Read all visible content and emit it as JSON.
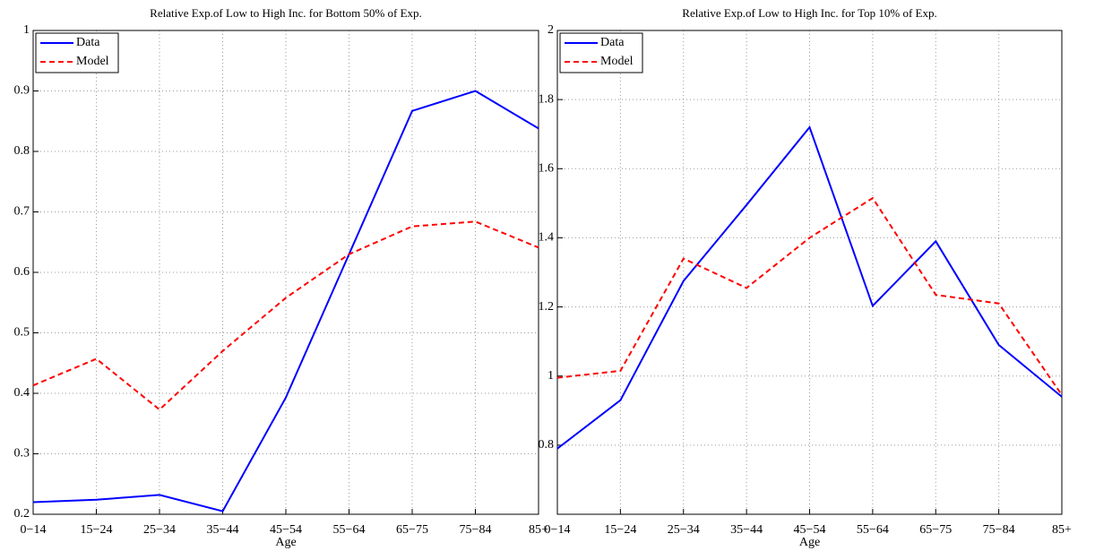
{
  "chart_data": [
    {
      "type": "line",
      "title": "Relative Exp.of Low to High Inc. for Bottom 50% of Exp.",
      "x_label": "Age",
      "categories": [
        "0−14",
        "15−24",
        "25−34",
        "35−44",
        "45−54",
        "55−64",
        "65−75",
        "75−84",
        "85+"
      ],
      "series": [
        {
          "name": "Data",
          "color": "#0000ff",
          "style": "solid",
          "values": [
            0.22,
            0.224,
            0.232,
            0.205,
            0.393,
            0.63,
            0.867,
            0.9,
            0.838
          ]
        },
        {
          "name": "Model",
          "color": "#ff0000",
          "style": "dashed",
          "values": [
            0.413,
            0.457,
            0.373,
            0.47,
            0.558,
            0.63,
            0.676,
            0.684,
            0.641
          ]
        }
      ],
      "ylim": [
        0.2,
        1
      ],
      "yticks": [
        0.2,
        0.3,
        0.4,
        0.5,
        0.6,
        0.7,
        0.8,
        0.9,
        1
      ],
      "grid": true,
      "legend": "top-left"
    },
    {
      "type": "line",
      "title": "Relative Exp.of Low to High Inc. for Top 10% of Exp.",
      "x_label": "Age",
      "categories": [
        "0−14",
        "15−24",
        "25−34",
        "35−44",
        "45−54",
        "55−64",
        "65−75",
        "75−84",
        "85+"
      ],
      "series": [
        {
          "name": "Data",
          "color": "#0000ff",
          "style": "solid",
          "values": [
            0.79,
            0.93,
            1.275,
            1.495,
            1.72,
            1.203,
            1.39,
            1.09,
            0.94
          ]
        },
        {
          "name": "Model",
          "color": "#ff0000",
          "style": "dashed",
          "values": [
            0.995,
            1.015,
            1.34,
            1.255,
            1.4,
            1.515,
            1.235,
            1.21,
            0.945
          ]
        }
      ],
      "ylim": [
        0.6,
        2
      ],
      "yticks": [
        0.8,
        1,
        1.2,
        1.4,
        1.6,
        1.8,
        2
      ],
      "grid": true,
      "legend": "top-left"
    }
  ]
}
